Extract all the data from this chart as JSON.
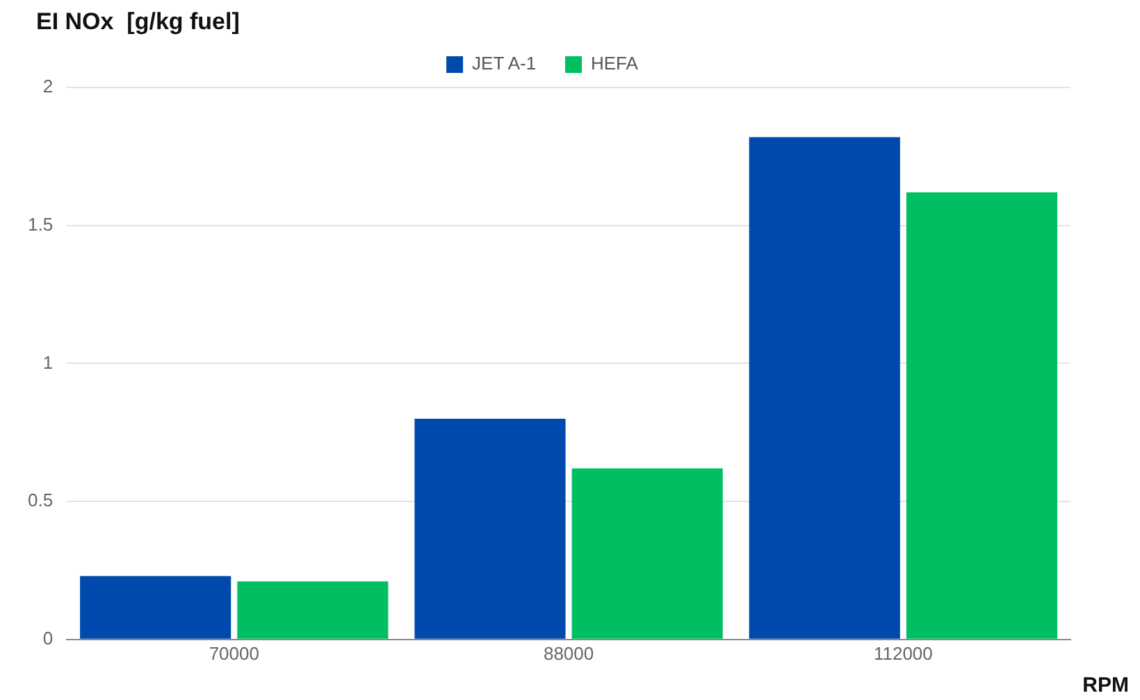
{
  "chart_data": {
    "type": "bar",
    "ylabel": "EI NOx  [g/kg fuel]",
    "xlabel": "RPM",
    "categories": [
      "70000",
      "88000",
      "112000"
    ],
    "series": [
      {
        "name": "JET A-1",
        "color": "#004aad",
        "values": [
          0.23,
          0.8,
          1.82
        ]
      },
      {
        "name": "HEFA",
        "color": "#00bf63",
        "values": [
          0.21,
          0.62,
          1.62
        ]
      }
    ],
    "ylim": [
      0,
      2
    ],
    "yticks": [
      0,
      0.5,
      1,
      1.5,
      2
    ],
    "grid": "y",
    "legend": "top"
  }
}
